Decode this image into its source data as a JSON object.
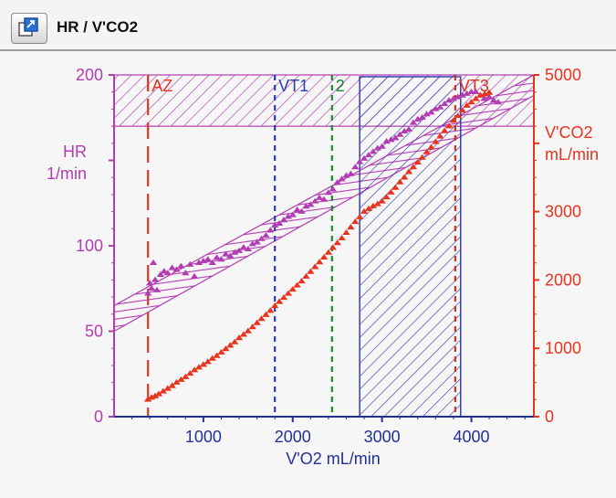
{
  "window": {
    "title": "HR / V'CO2",
    "icon": "expand-window-icon"
  },
  "colors": {
    "hr": "#b23cb2",
    "vco2": "#e8331e",
    "xaxis": "#23309a",
    "vt1": "#2a3fb3",
    "vt2": "#1a8a2a",
    "vt3": "#d0301c",
    "az": "#e8331e",
    "hatch_blue": "#3a3fb0"
  },
  "chart_data": {
    "type": "scatter",
    "xlabel": "V'O2  mL/min",
    "ylabel_left": [
      "HR",
      "1/min"
    ],
    "ylabel_right": [
      "V'CO2",
      "mL/min"
    ],
    "xlim": [
      0,
      4700
    ],
    "ylim_left": [
      0,
      200
    ],
    "ylim_right": [
      0,
      5000
    ],
    "x_ticks": [
      1000,
      2000,
      3000,
      4000
    ],
    "y_ticks_left": [
      0,
      50,
      100,
      150,
      200
    ],
    "y_ticks_left_labels": [
      "0",
      "50",
      "100",
      "",
      "200"
    ],
    "y_ticks_right": [
      0,
      1000,
      2000,
      3000,
      4000,
      5000
    ],
    "y_ticks_right_labels": [
      "0",
      "1000",
      "2000",
      "3000",
      "",
      "5000"
    ],
    "markers": [
      {
        "name": "AZ",
        "x": 380,
        "color_key": "az",
        "style": "long-dash"
      },
      {
        "name": "VT1",
        "x": 1800,
        "color_key": "vt1",
        "style": "dash"
      },
      {
        "name": "2",
        "x": 2440,
        "color_key": "vt2",
        "style": "dash"
      },
      {
        "name": "VT3",
        "x": 3820,
        "color_key": "vt3",
        "style": "dash"
      }
    ],
    "hr_max_band": {
      "y_from": 170,
      "y_to": 200
    },
    "hr_trend_band": {
      "lower": [
        [
          0,
          50
        ],
        [
          4700,
          188
        ]
      ],
      "upper": [
        [
          0,
          65
        ],
        [
          4700,
          200
        ]
      ]
    },
    "vco2_zone_band": {
      "x_from": 2750,
      "x_to": 3880
    },
    "series": [
      {
        "name": "HR",
        "axis": "left",
        "marker": "triangle",
        "color_key": "hr",
        "points": [
          [
            380,
            72
          ],
          [
            400,
            78
          ],
          [
            420,
            75
          ],
          [
            440,
            90
          ],
          [
            460,
            80
          ],
          [
            480,
            74
          ],
          [
            520,
            83
          ],
          [
            560,
            85
          ],
          [
            600,
            84
          ],
          [
            650,
            87
          ],
          [
            700,
            86
          ],
          [
            750,
            88
          ],
          [
            800,
            84
          ],
          [
            850,
            89
          ],
          [
            900,
            82
          ],
          [
            950,
            90
          ],
          [
            1000,
            91
          ],
          [
            1050,
            92
          ],
          [
            1100,
            90
          ],
          [
            1150,
            93
          ],
          [
            1200,
            92
          ],
          [
            1250,
            95
          ],
          [
            1300,
            94
          ],
          [
            1350,
            96
          ],
          [
            1400,
            97
          ],
          [
            1450,
            99
          ],
          [
            1500,
            98
          ],
          [
            1550,
            101
          ],
          [
            1600,
            102
          ],
          [
            1650,
            104
          ],
          [
            1700,
            106
          ],
          [
            1750,
            109
          ],
          [
            1800,
            112
          ],
          [
            1850,
            113
          ],
          [
            1900,
            115
          ],
          [
            1950,
            117
          ],
          [
            2000,
            118
          ],
          [
            2050,
            121
          ],
          [
            2100,
            120
          ],
          [
            2150,
            123
          ],
          [
            2200,
            124
          ],
          [
            2250,
            126
          ],
          [
            2300,
            128
          ],
          [
            2350,
            127
          ],
          [
            2400,
            131
          ],
          [
            2450,
            133
          ],
          [
            2500,
            137
          ],
          [
            2550,
            139
          ],
          [
            2600,
            141
          ],
          [
            2650,
            142
          ],
          [
            2700,
            146
          ],
          [
            2750,
            149
          ],
          [
            2800,
            151
          ],
          [
            2850,
            153
          ],
          [
            2900,
            155
          ],
          [
            2950,
            157
          ],
          [
            3000,
            158
          ],
          [
            3050,
            161
          ],
          [
            3100,
            162
          ],
          [
            3150,
            163
          ],
          [
            3200,
            165
          ],
          [
            3250,
            167
          ],
          [
            3300,
            168
          ],
          [
            3350,
            172
          ],
          [
            3400,
            174
          ],
          [
            3450,
            175
          ],
          [
            3500,
            177
          ],
          [
            3550,
            178
          ],
          [
            3600,
            180
          ],
          [
            3650,
            181
          ],
          [
            3700,
            183
          ],
          [
            3750,
            185
          ],
          [
            3800,
            186
          ],
          [
            3850,
            187
          ],
          [
            3900,
            188
          ],
          [
            3950,
            189
          ],
          [
            4000,
            190
          ],
          [
            4050,
            190
          ],
          [
            4100,
            188
          ],
          [
            4150,
            186
          ],
          [
            4200,
            187
          ],
          [
            4250,
            185
          ],
          [
            4300,
            184
          ]
        ]
      },
      {
        "name": "V'CO2",
        "axis": "right",
        "marker": "triangle",
        "color_key": "vco2",
        "points": [
          [
            380,
            250
          ],
          [
            420,
            280
          ],
          [
            460,
            300
          ],
          [
            500,
            330
          ],
          [
            550,
            370
          ],
          [
            600,
            410
          ],
          [
            650,
            450
          ],
          [
            700,
            500
          ],
          [
            750,
            540
          ],
          [
            800,
            580
          ],
          [
            850,
            630
          ],
          [
            900,
            680
          ],
          [
            950,
            720
          ],
          [
            1000,
            760
          ],
          [
            1050,
            800
          ],
          [
            1100,
            850
          ],
          [
            1150,
            890
          ],
          [
            1200,
            940
          ],
          [
            1250,
            990
          ],
          [
            1300,
            1040
          ],
          [
            1350,
            1090
          ],
          [
            1400,
            1150
          ],
          [
            1450,
            1200
          ],
          [
            1500,
            1250
          ],
          [
            1550,
            1310
          ],
          [
            1600,
            1370
          ],
          [
            1650,
            1430
          ],
          [
            1700,
            1490
          ],
          [
            1750,
            1550
          ],
          [
            1800,
            1620
          ],
          [
            1850,
            1680
          ],
          [
            1900,
            1740
          ],
          [
            1950,
            1800
          ],
          [
            2000,
            1860
          ],
          [
            2050,
            1920
          ],
          [
            2100,
            1980
          ],
          [
            2150,
            2050
          ],
          [
            2200,
            2120
          ],
          [
            2250,
            2190
          ],
          [
            2300,
            2260
          ],
          [
            2350,
            2330
          ],
          [
            2400,
            2400
          ],
          [
            2450,
            2470
          ],
          [
            2500,
            2540
          ],
          [
            2550,
            2610
          ],
          [
            2600,
            2690
          ],
          [
            2650,
            2770
          ],
          [
            2700,
            2850
          ],
          [
            2750,
            2920
          ],
          [
            2800,
            3000
          ],
          [
            2850,
            3040
          ],
          [
            2900,
            3080
          ],
          [
            2950,
            3110
          ],
          [
            3000,
            3150
          ],
          [
            3050,
            3210
          ],
          [
            3100,
            3280
          ],
          [
            3150,
            3350
          ],
          [
            3200,
            3430
          ],
          [
            3250,
            3500
          ],
          [
            3300,
            3580
          ],
          [
            3350,
            3650
          ],
          [
            3400,
            3720
          ],
          [
            3450,
            3790
          ],
          [
            3500,
            3870
          ],
          [
            3550,
            3940
          ],
          [
            3600,
            4020
          ],
          [
            3650,
            4100
          ],
          [
            3700,
            4180
          ],
          [
            3750,
            4250
          ],
          [
            3800,
            4330
          ],
          [
            3850,
            4400
          ],
          [
            3900,
            4480
          ],
          [
            3950,
            4550
          ],
          [
            4000,
            4600
          ],
          [
            4050,
            4650
          ],
          [
            4100,
            4700
          ],
          [
            4150,
            4720
          ],
          [
            4200,
            4740
          ]
        ]
      }
    ]
  }
}
